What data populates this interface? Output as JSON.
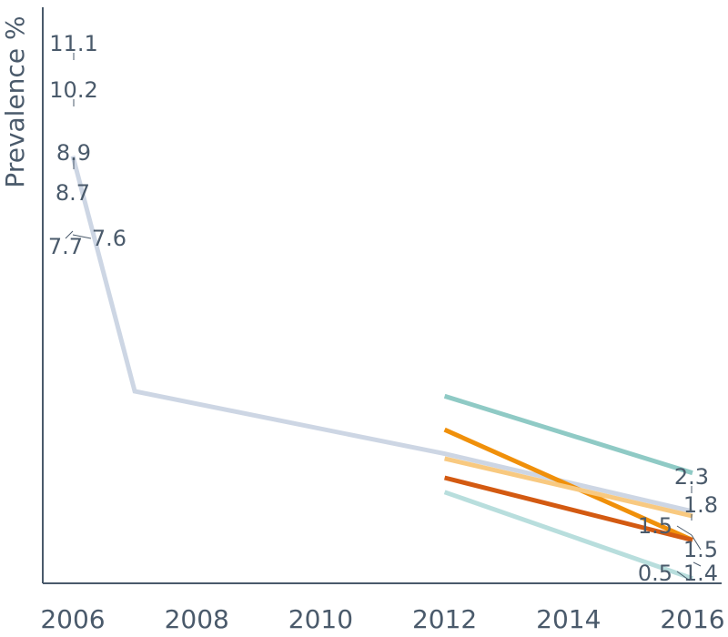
{
  "chart_data": {
    "type": "line",
    "ylabel": "Prevalence %",
    "xlim": [
      2006,
      2016
    ],
    "ylim": [
      0,
      12
    ],
    "x_ticks": [
      "2006",
      "2008",
      "2010",
      "2012",
      "2014",
      "2016"
    ],
    "grid": false,
    "series": [
      {
        "color": "#cdd6e4",
        "x": [
          2006,
          2007,
          2012,
          2016
        ],
        "y": [
          8.9,
          4.0,
          2.7,
          1.5
        ]
      },
      {
        "color": "#8fcac5",
        "x": [
          2012,
          2016
        ],
        "y": [
          3.9,
          2.3
        ]
      },
      {
        "color": "#f0900a",
        "x": [
          2012,
          2016
        ],
        "y": [
          3.2,
          0.9
        ]
      },
      {
        "color": "#f8c980",
        "x": [
          2012,
          2016
        ],
        "y": [
          2.6,
          1.4
        ]
      },
      {
        "color": "#d35a12",
        "x": [
          2012,
          2016
        ],
        "y": [
          2.2,
          0.9
        ]
      },
      {
        "color": "#b8dedd",
        "x": [
          2012,
          2016
        ],
        "y": [
          1.9,
          0.1
        ]
      }
    ],
    "data_labels": [
      {
        "text": "11.1"
      },
      {
        "text": "10.2"
      },
      {
        "text": "8.9"
      },
      {
        "text": "8.7"
      },
      {
        "text": "7.7"
      },
      {
        "text": "7.6"
      },
      {
        "text": "2.3"
      },
      {
        "text": "1.8"
      },
      {
        "text": "1.5"
      },
      {
        "text": "1.5"
      },
      {
        "text": "0.5"
      },
      {
        "text": "1.4"
      }
    ]
  }
}
